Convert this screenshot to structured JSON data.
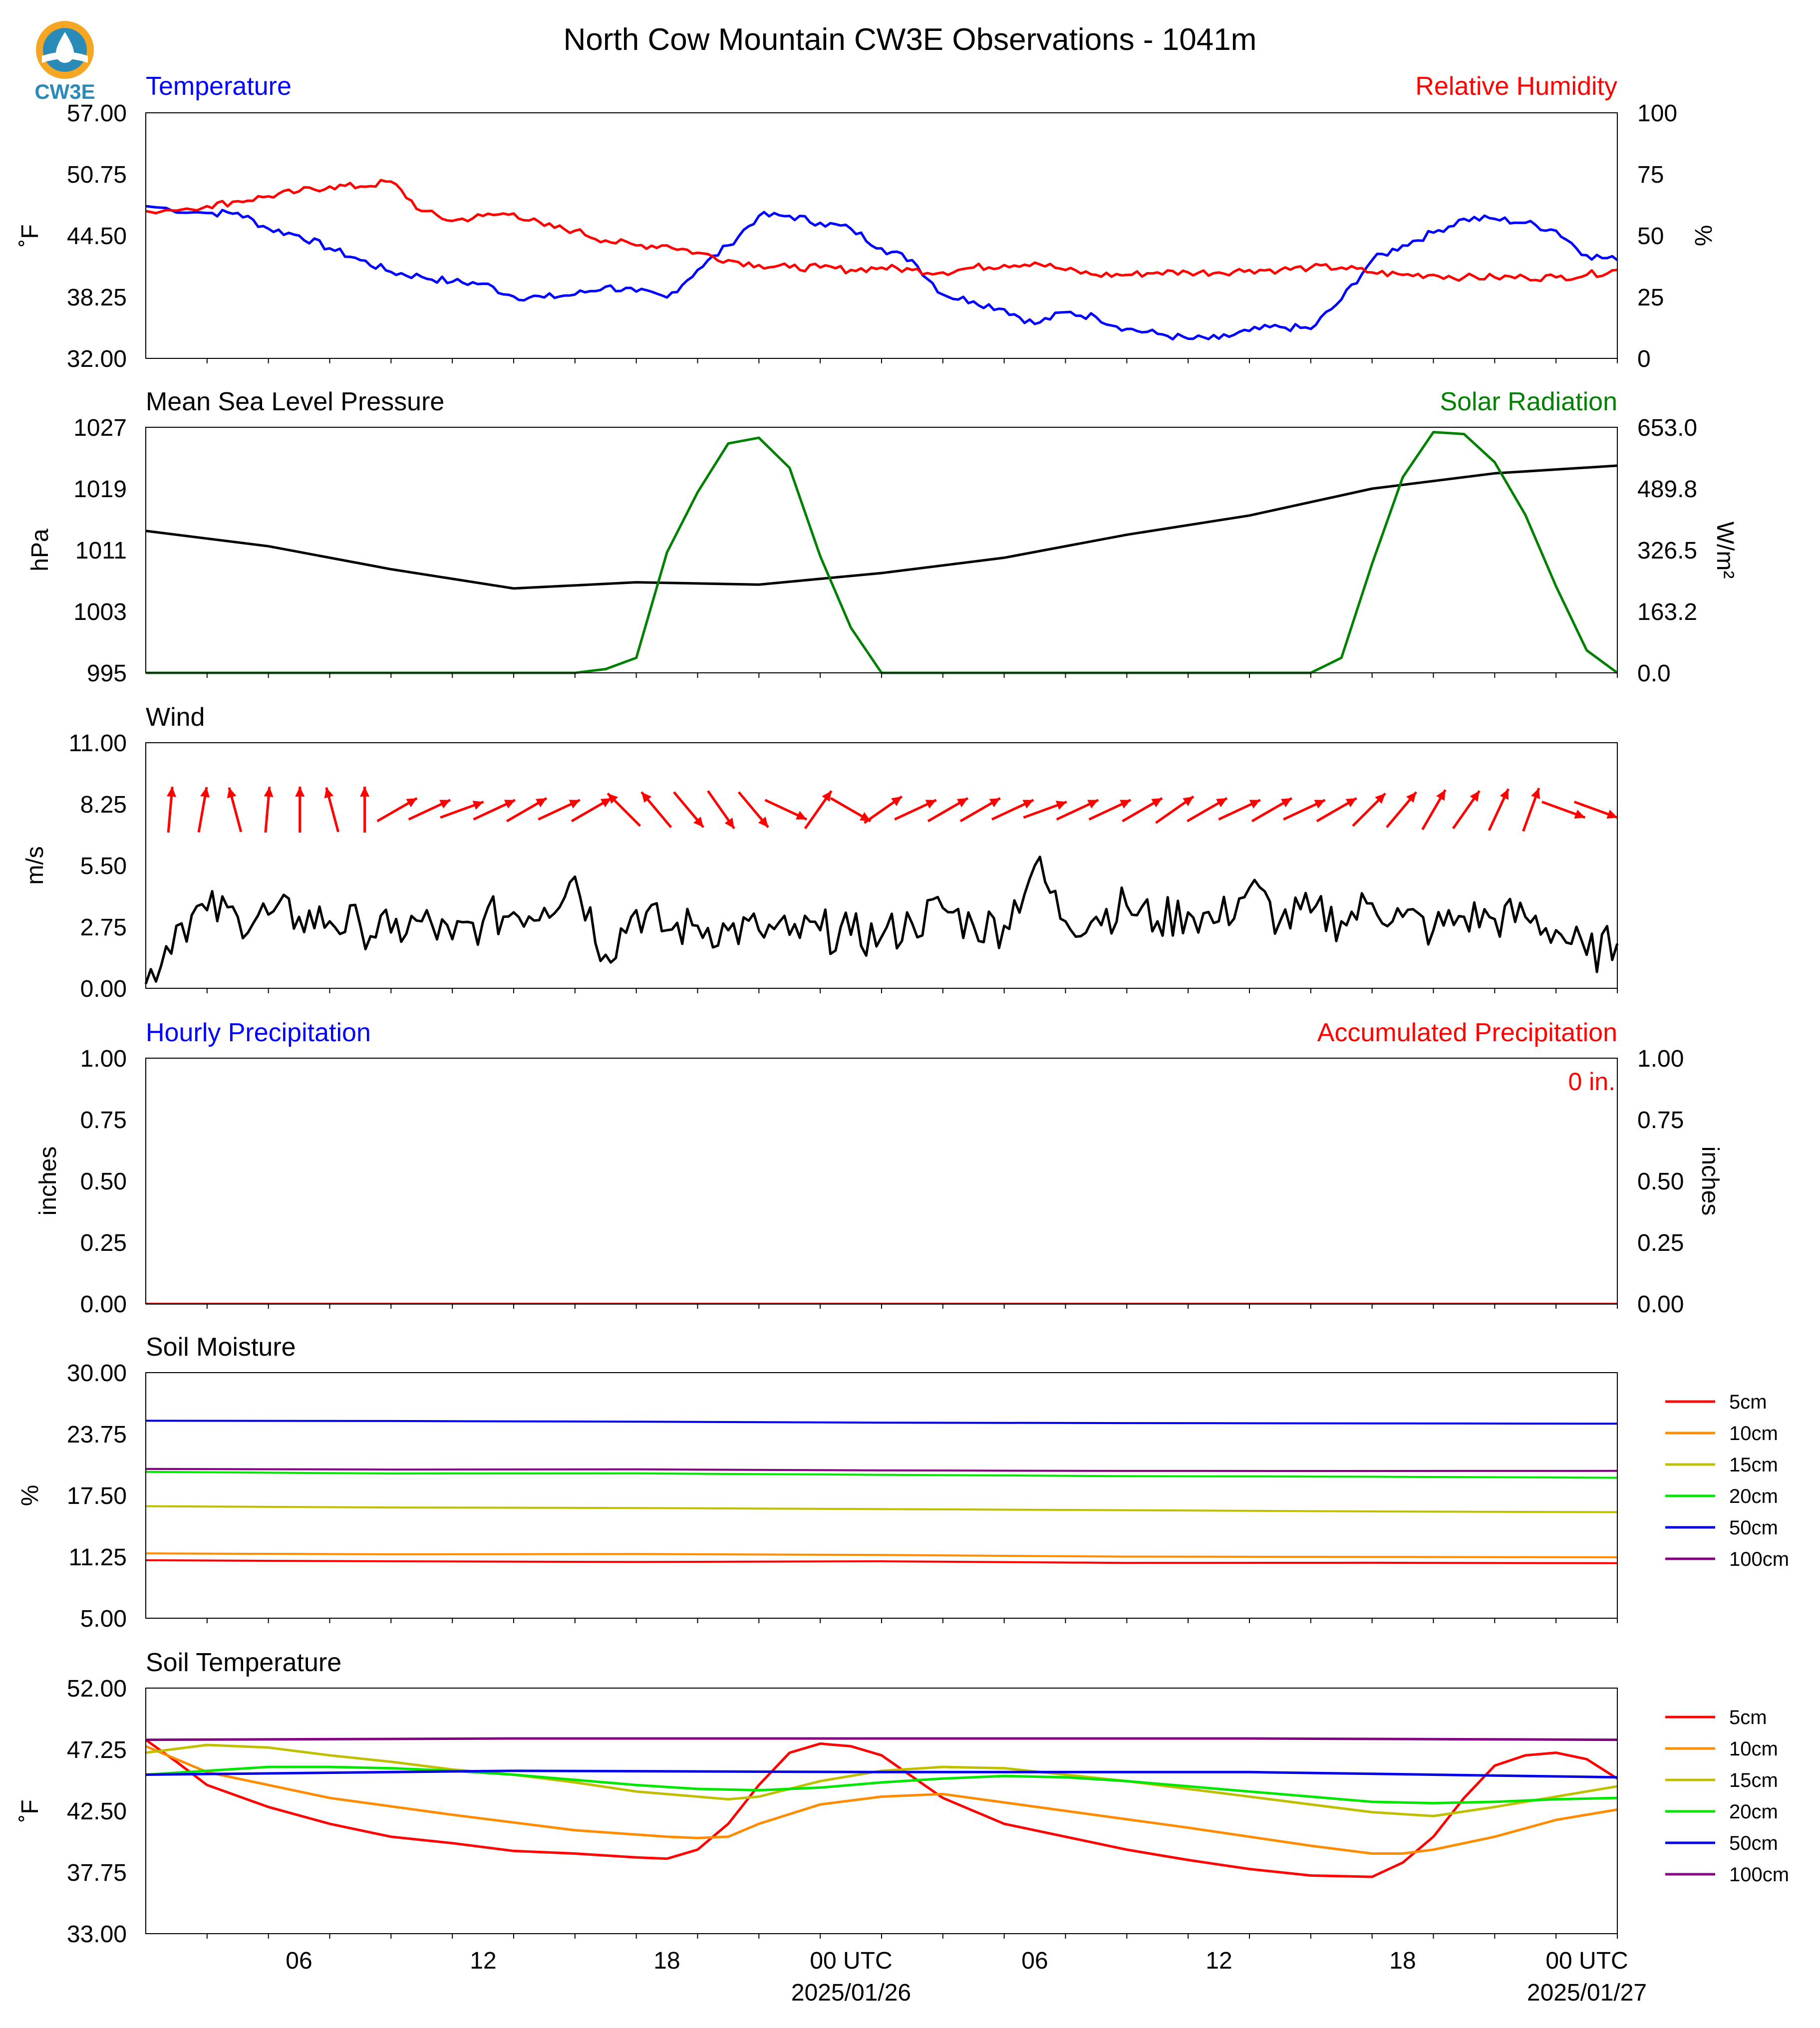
{
  "title": "North Cow Mountain CW3E Observations - 1041m",
  "logo": {
    "text": "CW3E",
    "color": "#2a8ab8",
    "accent": "#f5a623"
  },
  "x_axis": {
    "ticks": [
      "06",
      "12",
      "18",
      "00 UTC",
      "06",
      "12",
      "18",
      "00 UTC"
    ],
    "dates": [
      "2025/01/26",
      "2025/01/27"
    ]
  },
  "panels": {
    "temp_rh": {
      "title_left": "Temperature",
      "title_right": "Relative Humidity",
      "ylabel_left": "˚F",
      "ylabel_right": "%",
      "yticks_left": [
        "57.00",
        "50.75",
        "44.50",
        "38.25",
        "32.00"
      ],
      "yticks_right": [
        "100",
        "75",
        "50",
        "25",
        "0"
      ]
    },
    "pressure_solar": {
      "title_left": "Mean Sea Level Pressure",
      "title_right": "Solar Radiation",
      "ylabel_left": "hPa",
      "ylabel_right": "W/m²",
      "yticks_left": [
        "1027",
        "1019",
        "1011",
        "1003",
        "995"
      ],
      "yticks_right": [
        "653.0",
        "489.8",
        "326.5",
        "163.2",
        "0.0"
      ]
    },
    "wind": {
      "title_left": "Wind",
      "ylabel_left": "m/s",
      "yticks_left": [
        "11.00",
        "8.25",
        "5.50",
        "2.75",
        "0.00"
      ]
    },
    "precip": {
      "title_left": "Hourly Precipitation",
      "title_right": "Accumulated Precipitation",
      "ylabel_left": "inches",
      "ylabel_right": "inches",
      "yticks_left": [
        "1.00",
        "0.75",
        "0.50",
        "0.25",
        "0.00"
      ],
      "yticks_right": [
        "1.00",
        "0.75",
        "0.50",
        "0.25",
        "0.00"
      ],
      "accum_text": "0 in."
    },
    "soil_moisture": {
      "title_left": "Soil Moisture",
      "ylabel_left": "%",
      "yticks_left": [
        "30.00",
        "23.75",
        "17.50",
        "11.25",
        "5.00"
      ]
    },
    "soil_temp": {
      "title_left": "Soil Temperature",
      "ylabel_left": "˚F",
      "yticks_left": [
        "52.00",
        "47.25",
        "42.50",
        "37.75",
        "33.00"
      ]
    }
  },
  "chart_data": [
    {
      "type": "line",
      "x_unit": "hours from 2025/01/25 01 UTC",
      "x_range": [
        0,
        48
      ],
      "ylim_left": [
        32,
        57
      ],
      "ylim_right": [
        0,
        100
      ],
      "series": [
        {
          "name": "Temperature",
          "axis": "left",
          "color": "#0000ff",
          "x": [
            0,
            2,
            3,
            4,
            5,
            6,
            7,
            8,
            9,
            10,
            11,
            12,
            13,
            14,
            15,
            16,
            17,
            18,
            19,
            20,
            21,
            22,
            23,
            24,
            25,
            26,
            27,
            28,
            29,
            30,
            31,
            32,
            33,
            34,
            35,
            36,
            37,
            38,
            39,
            40,
            41,
            42,
            43,
            44,
            45,
            46,
            47,
            48
          ],
          "y": [
            47.5,
            46.8,
            46.8,
            45.2,
            44.5,
            43.2,
            42.0,
            40.8,
            40.3,
            39.8,
            39.6,
            38.3,
            38.2,
            38.5,
            39.3,
            38.8,
            38.2,
            41.0,
            43.5,
            46.5,
            46.5,
            45.8,
            45.2,
            43.2,
            42.0,
            38.5,
            37.8,
            37.0,
            35.5,
            36.7,
            36.2,
            35.0,
            34.5,
            34.0,
            34.0,
            34.8,
            35.2,
            35.0,
            38.0,
            42.0,
            43.5,
            44.8,
            46.2,
            46.2,
            45.8,
            45.0,
            42.5,
            42.0
          ]
        },
        {
          "name": "Relative Humidity",
          "axis": "right",
          "color": "#ff0000",
          "x": [
            0,
            2,
            3,
            4,
            5,
            6,
            7,
            8,
            9,
            10,
            11,
            12,
            13,
            14,
            15,
            16,
            17,
            18,
            19,
            20,
            21,
            22,
            23,
            24,
            25,
            26,
            27,
            28,
            29,
            30,
            31,
            32,
            33,
            34,
            35,
            36,
            37,
            38,
            39,
            40,
            41,
            42,
            43,
            44,
            45,
            46,
            47,
            48
          ],
          "y": [
            60,
            62,
            64,
            66,
            68,
            70,
            70,
            72,
            60,
            56,
            58,
            59,
            54,
            52,
            48,
            46,
            46,
            43,
            40,
            38,
            37,
            37,
            36,
            37,
            36,
            35,
            37,
            38,
            39,
            36,
            34,
            34,
            35,
            35,
            35,
            36,
            36,
            37,
            37,
            35,
            34,
            34,
            33,
            33,
            33,
            33,
            34,
            36
          ]
        }
      ]
    },
    {
      "type": "line",
      "x_unit": "hours from 2025/01/25 01 UTC",
      "x_range": [
        0,
        48
      ],
      "ylim_left": [
        995,
        1027
      ],
      "ylim_right": [
        0,
        653
      ],
      "series": [
        {
          "name": "Mean Sea Level Pressure",
          "axis": "left",
          "color": "#000000",
          "x": [
            0,
            4,
            8,
            12,
            16,
            20,
            24,
            28,
            32,
            36,
            40,
            44,
            48
          ],
          "y": [
            1013.5,
            1011.5,
            1008.5,
            1006.0,
            1006.8,
            1006.5,
            1008.0,
            1010.0,
            1013.0,
            1015.5,
            1019.0,
            1021.0,
            1022.0
          ]
        },
        {
          "name": "Solar Radiation",
          "axis": "right",
          "color": "#008000",
          "x": [
            0,
            14,
            15,
            16,
            17,
            18,
            19,
            20,
            21,
            22,
            23,
            24,
            25,
            38,
            39,
            40,
            41,
            42,
            43,
            44,
            45,
            46,
            47,
            48
          ],
          "y": [
            0,
            0,
            10,
            40,
            320,
            480,
            610,
            625,
            545,
            310,
            120,
            0,
            0,
            0,
            40,
            290,
            520,
            640,
            635,
            560,
            420,
            230,
            60,
            0
          ]
        }
      ]
    },
    {
      "type": "line",
      "x_unit": "hours from 2025/01/25 01 UTC",
      "x_range": [
        0,
        48
      ],
      "ylim": [
        0,
        11
      ],
      "series": [
        {
          "name": "Wind",
          "color": "#000000",
          "x": [
            0,
            1,
            2,
            3,
            4,
            5,
            6,
            7,
            8,
            9,
            10,
            11,
            12,
            13,
            14,
            15,
            16,
            17,
            18,
            19,
            20,
            21,
            22,
            23,
            24,
            25,
            26,
            27,
            28,
            29,
            30,
            31,
            32,
            33,
            34,
            35,
            36,
            37,
            38,
            39,
            40,
            41,
            42,
            43,
            44,
            45,
            46,
            47,
            48
          ],
          "y": [
            0.2,
            2.8,
            3.5,
            3.2,
            3.3,
            3.2,
            3.0,
            2.8,
            2.5,
            3.0,
            2.2,
            3.0,
            3.4,
            3.6,
            5.0,
            1.5,
            3.5,
            2.6,
            2.8,
            2.6,
            2.6,
            2.4,
            2.6,
            2.4,
            2.3,
            2.9,
            3.6,
            2.8,
            2.8,
            5.5,
            3.0,
            3.2,
            3.7,
            3.0,
            3.4,
            3.0,
            4.5,
            3.0,
            3.4,
            3.0,
            3.8,
            3.2,
            2.6,
            3.2,
            3.1,
            3.2,
            2.6,
            1.5,
            2.0
          ]
        }
      ],
      "wind_directions_deg": [
        185,
        190,
        165,
        185,
        180,
        165,
        180,
        240,
        245,
        250,
        245,
        240,
        245,
        240,
        135,
        140,
        320,
        325,
        320,
        295,
        215,
        300,
        235,
        245,
        240,
        240,
        245,
        250,
        245,
        245,
        240,
        235,
        240,
        245,
        240,
        245,
        240,
        225,
        220,
        210,
        215,
        205,
        200,
        290,
        290
      ]
    },
    {
      "type": "line",
      "x_unit": "hours from 2025/01/25 01 UTC",
      "x_range": [
        0,
        48
      ],
      "ylim": [
        0,
        1
      ],
      "series": [
        {
          "name": "Hourly Precipitation",
          "color": "#0000ff",
          "x": [
            0,
            48
          ],
          "y": [
            0,
            0
          ]
        },
        {
          "name": "Accumulated Precipitation",
          "color": "#ff0000",
          "x": [
            0,
            48
          ],
          "y": [
            0,
            0
          ]
        }
      ]
    },
    {
      "type": "line",
      "x_unit": "hours from 2025/01/25 01 UTC",
      "x_range": [
        0,
        48
      ],
      "ylim": [
        5,
        30
      ],
      "series": [
        {
          "name": "5cm",
          "color": "#ff0000",
          "x": [
            0,
            48
          ],
          "y": [
            10.9,
            10.6
          ]
        },
        {
          "name": "10cm",
          "color": "#ff8c00",
          "x": [
            0,
            48
          ],
          "y": [
            11.6,
            11.2
          ]
        },
        {
          "name": "15cm",
          "color": "#bfbf00",
          "x": [
            0,
            48
          ],
          "y": [
            16.4,
            15.8
          ]
        },
        {
          "name": "20cm",
          "color": "#00e600",
          "x": [
            0,
            48
          ],
          "y": [
            19.9,
            19.3
          ]
        },
        {
          "name": "50cm",
          "color": "#0000e6",
          "x": [
            0,
            48
          ],
          "y": [
            25.1,
            24.8
          ]
        },
        {
          "name": "100cm",
          "color": "#800080",
          "x": [
            0,
            48
          ],
          "y": [
            20.2,
            20.0
          ]
        }
      ]
    },
    {
      "type": "line",
      "x_unit": "hours from 2025/01/25 01 UTC",
      "x_range": [
        0,
        48
      ],
      "ylim": [
        33,
        52
      ],
      "series": [
        {
          "name": "5cm",
          "color": "#ff0000",
          "x": [
            0,
            1,
            2,
            4,
            6,
            8,
            10,
            12,
            14,
            16,
            17,
            18,
            19,
            20,
            21,
            22,
            23,
            24,
            26,
            28,
            30,
            32,
            34,
            36,
            38,
            40,
            41,
            42,
            43,
            44,
            45,
            46,
            47,
            48
          ],
          "y": [
            48.0,
            46.3,
            44.5,
            42.8,
            41.5,
            40.5,
            40.0,
            39.4,
            39.2,
            38.9,
            38.8,
            39.5,
            41.5,
            44.5,
            47.0,
            47.7,
            47.5,
            46.8,
            43.5,
            41.5,
            40.5,
            39.5,
            38.7,
            38.0,
            37.5,
            37.4,
            38.5,
            40.5,
            43.5,
            46.0,
            46.8,
            47.0,
            46.5,
            45.0
          ]
        },
        {
          "name": "10cm",
          "color": "#ff8c00",
          "x": [
            0,
            2,
            6,
            10,
            14,
            17,
            18,
            19,
            20,
            22,
            24,
            26,
            30,
            34,
            38,
            40,
            41,
            42,
            44,
            46,
            48
          ],
          "y": [
            47.5,
            45.5,
            43.5,
            42.2,
            41.0,
            40.5,
            40.4,
            40.5,
            41.5,
            43.0,
            43.6,
            43.8,
            42.5,
            41.2,
            39.8,
            39.2,
            39.2,
            39.5,
            40.5,
            41.8,
            42.6
          ]
        },
        {
          "name": "15cm",
          "color": "#bfbf00",
          "x": [
            0,
            2,
            4,
            6,
            8,
            10,
            12,
            14,
            16,
            18,
            19,
            20,
            22,
            24,
            26,
            28,
            30,
            32,
            34,
            36,
            38,
            40,
            42,
            44,
            46,
            48
          ],
          "y": [
            47.0,
            47.6,
            47.4,
            46.8,
            46.3,
            45.7,
            45.3,
            44.7,
            44.0,
            43.6,
            43.4,
            43.6,
            44.8,
            45.6,
            45.9,
            45.8,
            45.3,
            44.8,
            44.2,
            43.6,
            43.0,
            42.4,
            42.1,
            42.8,
            43.6,
            44.4
          ]
        },
        {
          "name": "20cm",
          "color": "#00e600",
          "x": [
            0,
            2,
            4,
            6,
            8,
            10,
            12,
            14,
            16,
            18,
            20,
            22,
            24,
            26,
            28,
            30,
            32,
            34,
            36,
            38,
            40,
            42,
            44,
            46,
            48
          ],
          "y": [
            45.3,
            45.6,
            45.9,
            45.9,
            45.8,
            45.6,
            45.3,
            44.9,
            44.5,
            44.2,
            44.1,
            44.3,
            44.7,
            45.0,
            45.2,
            45.1,
            44.8,
            44.4,
            44.0,
            43.6,
            43.2,
            43.1,
            43.2,
            43.4,
            43.5
          ]
        },
        {
          "name": "50cm",
          "color": "#0000e6",
          "x": [
            0,
            12,
            24,
            36,
            48
          ],
          "y": [
            45.3,
            45.6,
            45.5,
            45.5,
            45.1
          ]
        },
        {
          "name": "100cm",
          "color": "#800080",
          "x": [
            0,
            12,
            24,
            36,
            48
          ],
          "y": [
            48.0,
            48.1,
            48.1,
            48.1,
            48.0
          ]
        }
      ]
    }
  ]
}
